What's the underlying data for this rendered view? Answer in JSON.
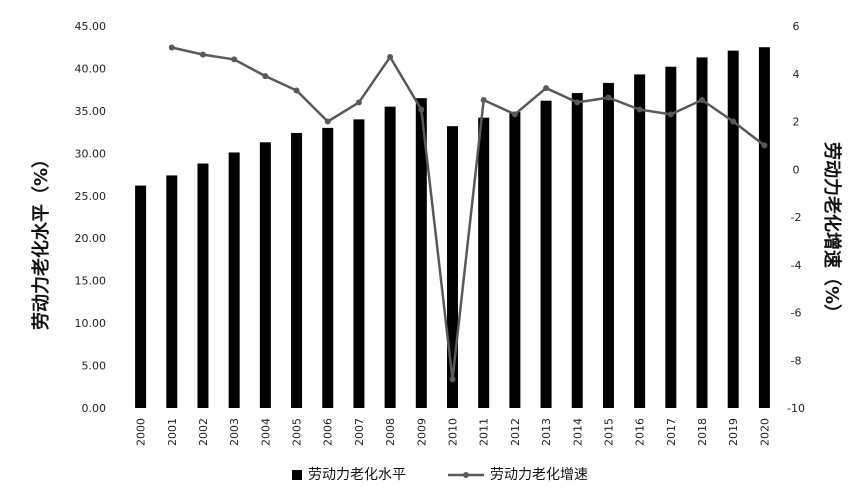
{
  "chart_data": {
    "type": "bar",
    "categories": [
      "2000",
      "2001",
      "2002",
      "2003",
      "2004",
      "2005",
      "2006",
      "2007",
      "2008",
      "2009",
      "2010",
      "2011",
      "2012",
      "2013",
      "2014",
      "2015",
      "2016",
      "2017",
      "2018",
      "2019",
      "2020"
    ],
    "series": [
      {
        "name": "劳动力老化水平",
        "type": "bar",
        "axis": "left",
        "color": "#000000",
        "values": [
          26.2,
          27.4,
          28.8,
          30.1,
          31.3,
          32.4,
          33.0,
          34.0,
          35.5,
          36.5,
          33.2,
          34.2,
          34.9,
          36.2,
          37.1,
          38.3,
          39.3,
          40.2,
          41.3,
          42.1,
          42.5
        ]
      },
      {
        "name": "劳动力老化增速",
        "type": "line",
        "axis": "right",
        "color": "#595959",
        "values": [
          null,
          5.1,
          4.8,
          4.6,
          3.9,
          3.3,
          2.0,
          2.8,
          4.7,
          2.5,
          -8.8,
          2.9,
          2.3,
          3.4,
          2.8,
          3.0,
          2.5,
          2.3,
          2.9,
          2.0,
          1.0
        ]
      }
    ],
    "y_left": {
      "label": "劳动力老化水平（%）",
      "ylim": [
        0,
        45
      ],
      "ticks": [
        "0.00",
        "5.00",
        "10.00",
        "15.00",
        "20.00",
        "25.00",
        "30.00",
        "35.00",
        "40.00",
        "45.00"
      ]
    },
    "y_right": {
      "label": "劳动力老化增速（%）",
      "ylim": [
        -10,
        6
      ],
      "ticks": [
        "-10",
        "-8",
        "-6",
        "-4",
        "-2",
        "0",
        "2",
        "4",
        "6"
      ]
    },
    "legend": {
      "placement": "bottom",
      "items": [
        "劳动力老化水平",
        "劳动力老化增速"
      ]
    },
    "grid": false
  }
}
